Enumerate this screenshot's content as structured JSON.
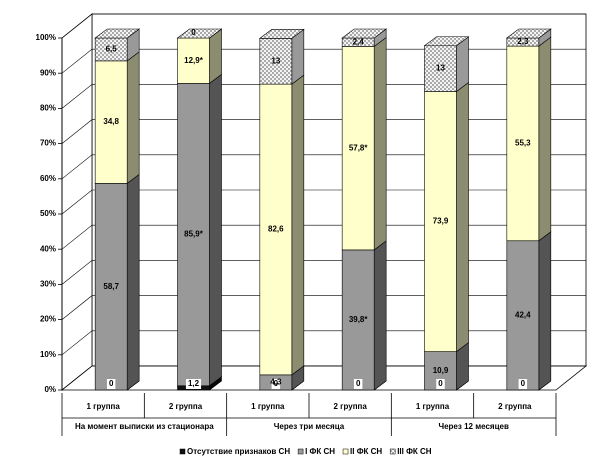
{
  "chart_data": {
    "type": "bar3d_stacked",
    "categories": [
      "1 группа",
      "2 группа",
      "1 группа",
      "2 группа",
      "1 группа",
      "2 группа"
    ],
    "groups": [
      "На момент выписки из стационара",
      "Через три месяца",
      "Через 12 месяцев"
    ],
    "series": [
      {
        "name": "Отсутствие признаков СН",
        "color": "#111111",
        "values": [
          0,
          1.2,
          0,
          0,
          0,
          0
        ],
        "value_labels": [
          "0",
          "1,2",
          "0",
          "0",
          "0",
          "0"
        ]
      },
      {
        "name": "I ФК СН",
        "color": "#999999",
        "values": [
          58.7,
          85.9,
          4.3,
          39.8,
          10.9,
          42.4
        ],
        "value_labels": [
          "58,7",
          "85,9*",
          "4,3",
          "39,8*",
          "10,9",
          "42,4"
        ]
      },
      {
        "name": "II ФК СН",
        "color": "#ffffcc",
        "values": [
          34.8,
          12.9,
          82.6,
          57.8,
          73.9,
          55.3
        ],
        "value_labels": [
          "34,8",
          "12,9*",
          "82,6",
          "57,8*",
          "73,9",
          "55,3"
        ]
      },
      {
        "name": "III ФК СН",
        "color": "hatch",
        "values": [
          6.5,
          0,
          13,
          2.4,
          13,
          2.3
        ],
        "value_labels": [
          "6,5",
          "0",
          "13",
          "2,4",
          "13",
          "2,3"
        ]
      }
    ],
    "ylim": [
      0,
      100
    ],
    "yticks": [
      {
        "value": 0,
        "label": "0%"
      },
      {
        "value": 10,
        "label": "10%"
      },
      {
        "value": 20,
        "label": "20%"
      },
      {
        "value": 30,
        "label": "30%"
      },
      {
        "value": 40,
        "label": "40%"
      },
      {
        "value": 50,
        "label": "50%"
      },
      {
        "value": 60,
        "label": "60%"
      },
      {
        "value": 70,
        "label": "70%"
      },
      {
        "value": 80,
        "label": "80%"
      },
      {
        "value": 90,
        "label": "90%"
      },
      {
        "value": 100,
        "label": "100%"
      }
    ],
    "grid": true
  }
}
